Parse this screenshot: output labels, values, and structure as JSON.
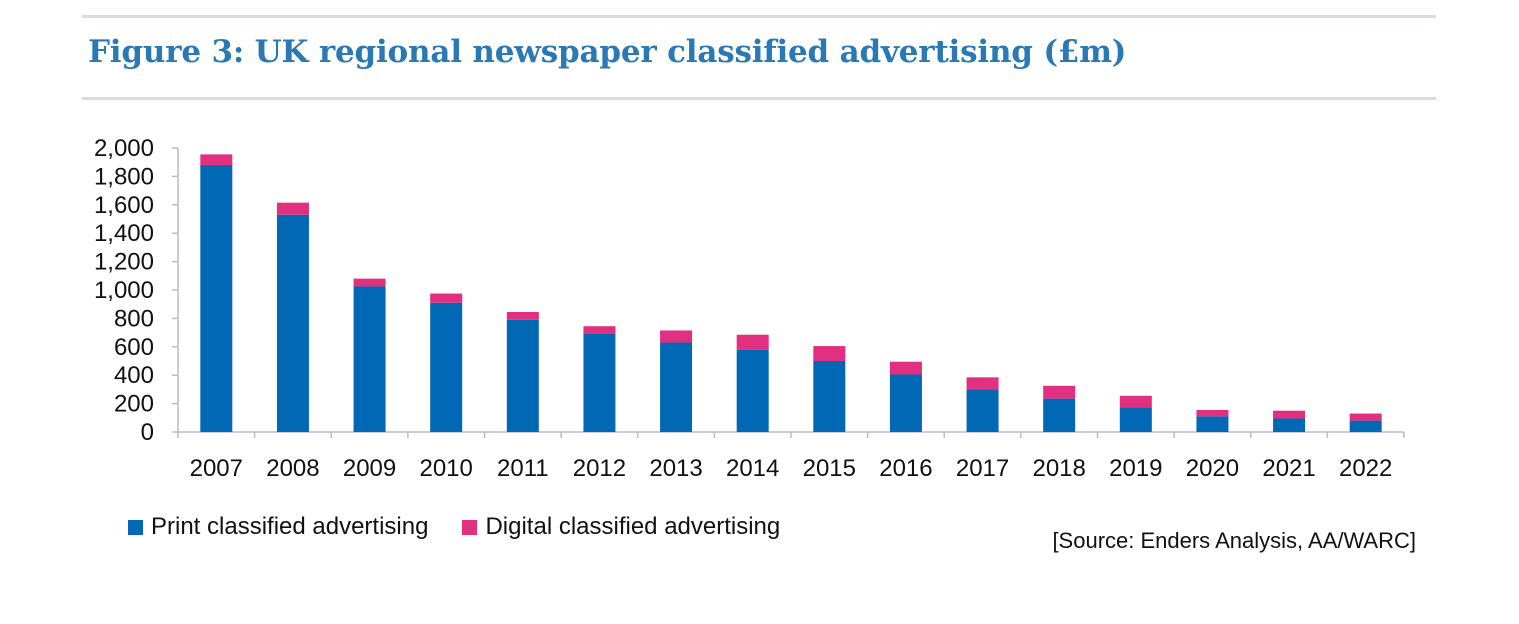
{
  "title": "Figure 3: UK regional newspaper classified advertising (£m)",
  "source": "[Source: Enders Analysis, AA/WARC]",
  "colors": {
    "print": "#0068b4",
    "digital": "#e0307f",
    "title": "#2a79b5",
    "rule": "#d7dbe3"
  },
  "chart_data": {
    "type": "bar",
    "stacked": true,
    "title": "Figure 3: UK regional newspaper classified advertising (£m)",
    "xlabel": "",
    "ylabel": "",
    "ylim": [
      0,
      2000
    ],
    "yticks": [
      0,
      200,
      400,
      600,
      800,
      1000,
      1200,
      1400,
      1600,
      1800,
      2000
    ],
    "ytick_labels": [
      "0",
      "200",
      "400",
      "600",
      "800",
      "1,000",
      "1,200",
      "1,400",
      "1,600",
      "1,800",
      "2,000"
    ],
    "grid": false,
    "legend_position": "bottom-left",
    "categories": [
      "2007",
      "2008",
      "2009",
      "2010",
      "2011",
      "2012",
      "2013",
      "2014",
      "2015",
      "2016",
      "2017",
      "2018",
      "2019",
      "2020",
      "2021",
      "2022"
    ],
    "series": [
      {
        "name": "Print classified advertising",
        "color": "#0068b4",
        "values": [
          1880,
          1530,
          1025,
          910,
          790,
          690,
          630,
          580,
          500,
          405,
          300,
          235,
          175,
          110,
          95,
          80
        ]
      },
      {
        "name": "Digital classified advertising",
        "color": "#e0307f",
        "values": [
          75,
          85,
          55,
          65,
          55,
          55,
          85,
          105,
          105,
          90,
          85,
          90,
          80,
          45,
          55,
          50
        ]
      }
    ]
  }
}
